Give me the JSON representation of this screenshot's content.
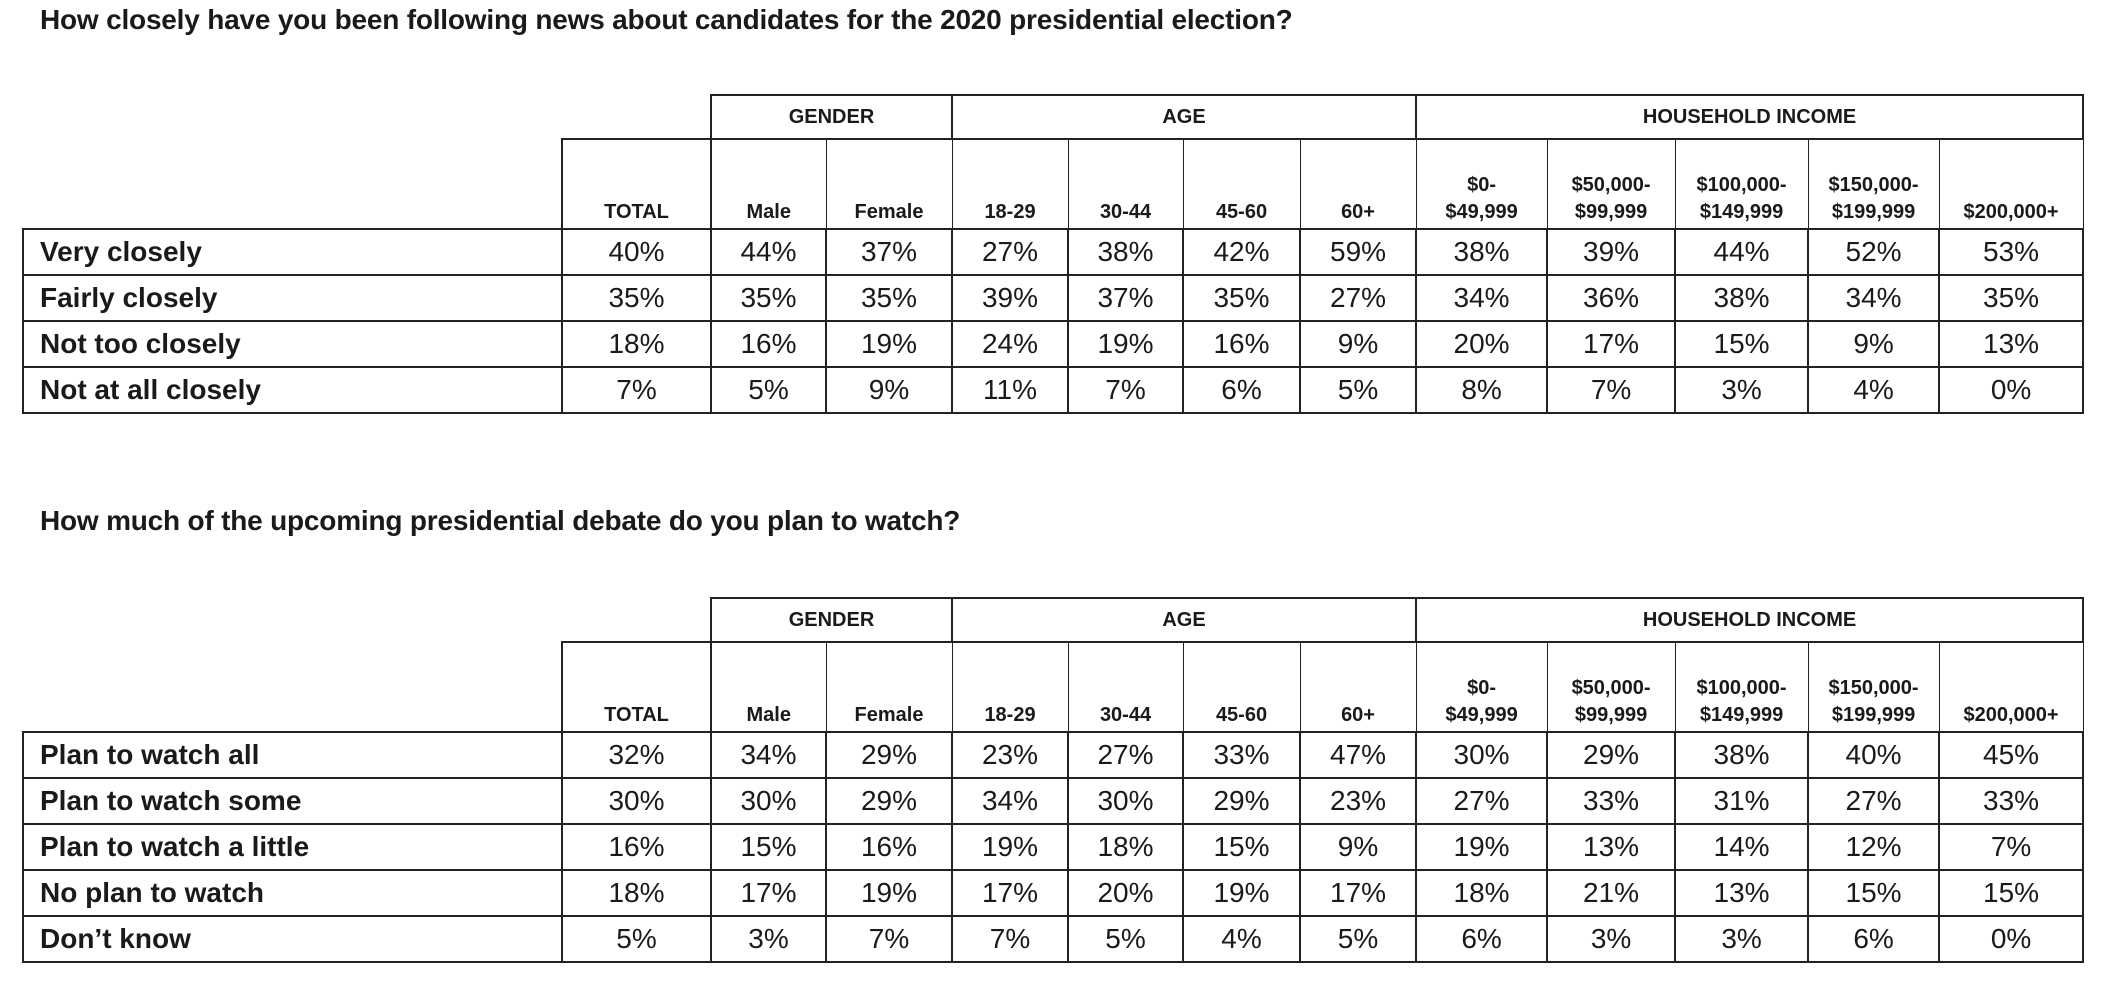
{
  "groups": {
    "gender": "GENDER",
    "age": "AGE",
    "income": "HOUSEHOLD INCOME"
  },
  "columns": {
    "total": "TOTAL",
    "male": "Male",
    "female": "Female",
    "age_18_29": "18-29",
    "age_30_44": "30-44",
    "age_45_60": "45-60",
    "age_60_plus": "60+",
    "inc_0_l1": "$0-",
    "inc_0_l2": "$49,999",
    "inc_50k_l1": "$50,000-",
    "inc_50k_l2": "$99,999",
    "inc_100k_l1": "$100,000-",
    "inc_100k_l2": "$149,999",
    "inc_150k_l1": "$150,000-",
    "inc_150k_l2": "$199,999",
    "inc_200k": "$200,000+"
  },
  "q1": {
    "title": "How closely have you been following news about candidates for the 2020 presidential election?",
    "rows": [
      {
        "label": "Very closely",
        "values": [
          "40%",
          "44%",
          "37%",
          "27%",
          "38%",
          "42%",
          "59%",
          "38%",
          "39%",
          "44%",
          "52%",
          "53%"
        ]
      },
      {
        "label": "Fairly closely",
        "values": [
          "35%",
          "35%",
          "35%",
          "39%",
          "37%",
          "35%",
          "27%",
          "34%",
          "36%",
          "38%",
          "34%",
          "35%"
        ]
      },
      {
        "label": "Not too closely",
        "values": [
          "18%",
          "16%",
          "19%",
          "24%",
          "19%",
          "16%",
          "9%",
          "20%",
          "17%",
          "15%",
          "9%",
          "13%"
        ]
      },
      {
        "label": "Not at all closely",
        "values": [
          "7%",
          "5%",
          "9%",
          "11%",
          "7%",
          "6%",
          "5%",
          "8%",
          "7%",
          "3%",
          "4%",
          "0%"
        ]
      }
    ]
  },
  "q2": {
    "title": "How much of the upcoming presidential debate do you plan to watch?",
    "rows": [
      {
        "label": "Plan to watch all",
        "values": [
          "32%",
          "34%",
          "29%",
          "23%",
          "27%",
          "33%",
          "47%",
          "30%",
          "29%",
          "38%",
          "40%",
          "45%"
        ]
      },
      {
        "label": "Plan to watch some",
        "values": [
          "30%",
          "30%",
          "29%",
          "34%",
          "30%",
          "29%",
          "23%",
          "27%",
          "33%",
          "31%",
          "27%",
          "33%"
        ]
      },
      {
        "label": "Plan to watch a little",
        "values": [
          "16%",
          "15%",
          "16%",
          "19%",
          "18%",
          "15%",
          "9%",
          "19%",
          "13%",
          "14%",
          "12%",
          "7%"
        ]
      },
      {
        "label": "No plan to watch",
        "values": [
          "18%",
          "17%",
          "19%",
          "17%",
          "20%",
          "19%",
          "17%",
          "18%",
          "21%",
          "13%",
          "15%",
          "15%"
        ]
      },
      {
        "label": "Don’t know",
        "values": [
          "5%",
          "3%",
          "7%",
          "7%",
          "5%",
          "4%",
          "5%",
          "6%",
          "3%",
          "3%",
          "6%",
          "0%"
        ]
      }
    ]
  }
}
